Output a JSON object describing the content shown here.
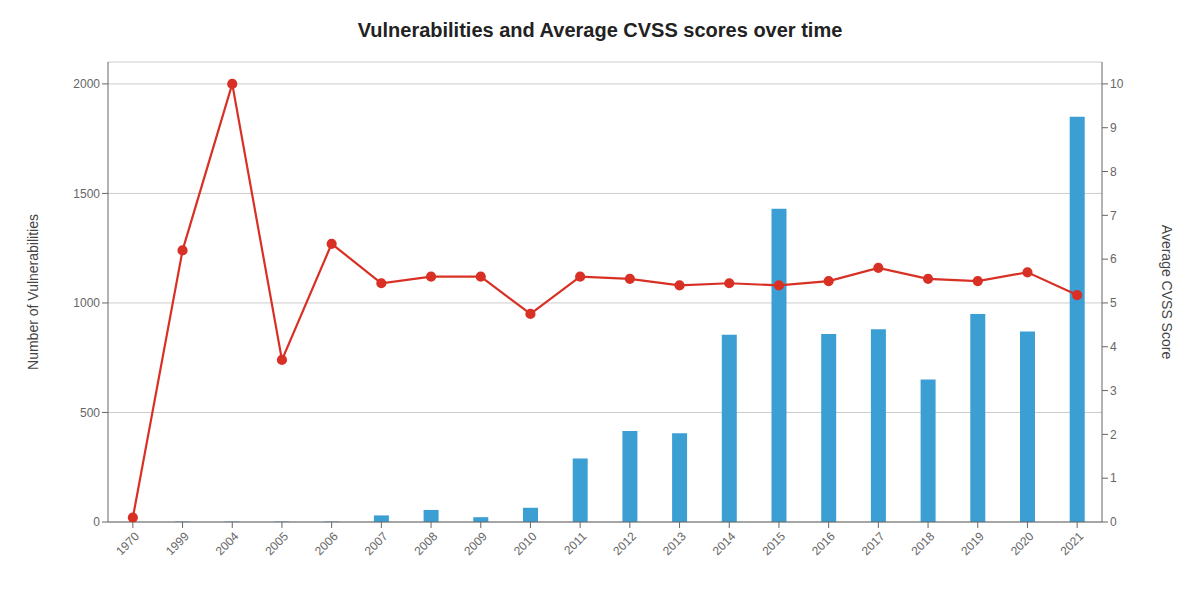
{
  "chart_data": {
    "type": "bar",
    "title": "Vulnerabilities and Average CVSS scores over time",
    "categories": [
      "1970",
      "1999",
      "2004",
      "2005",
      "2006",
      "2007",
      "2008",
      "2009",
      "2010",
      "2011",
      "2012",
      "2013",
      "2014",
      "2015",
      "2016",
      "2017",
      "2018",
      "2019",
      "2020",
      "2021"
    ],
    "series": [
      {
        "type": "bar",
        "color": "#3b9fd4",
        "values": [
          0,
          2,
          2,
          2,
          2,
          30,
          55,
          22,
          65,
          290,
          415,
          405,
          855,
          1430,
          858,
          880,
          650,
          950,
          870,
          1850
        ]
      },
      {
        "type": "line",
        "color": "#d93025",
        "marker": "circle",
        "axis": "y2",
        "values": [
          0.1,
          6.2,
          10.0,
          3.7,
          6.35,
          5.45,
          5.6,
          5.6,
          4.75,
          5.6,
          5.55,
          5.4,
          5.45,
          5.4,
          5.5,
          5.8,
          5.55,
          5.5,
          5.7,
          5.18
        ]
      }
    ],
    "ylabel": "Number of Vulnerabilities",
    "y2label": "Average CVSS Score",
    "ylim": [
      0,
      2100
    ],
    "yticks": [
      0,
      500,
      1000,
      1500,
      2000
    ],
    "y2lim": [
      0,
      10.5
    ],
    "y2ticks": [
      0,
      1,
      2,
      3,
      4,
      5,
      6,
      7,
      8,
      9,
      10
    ],
    "grid": true
  }
}
